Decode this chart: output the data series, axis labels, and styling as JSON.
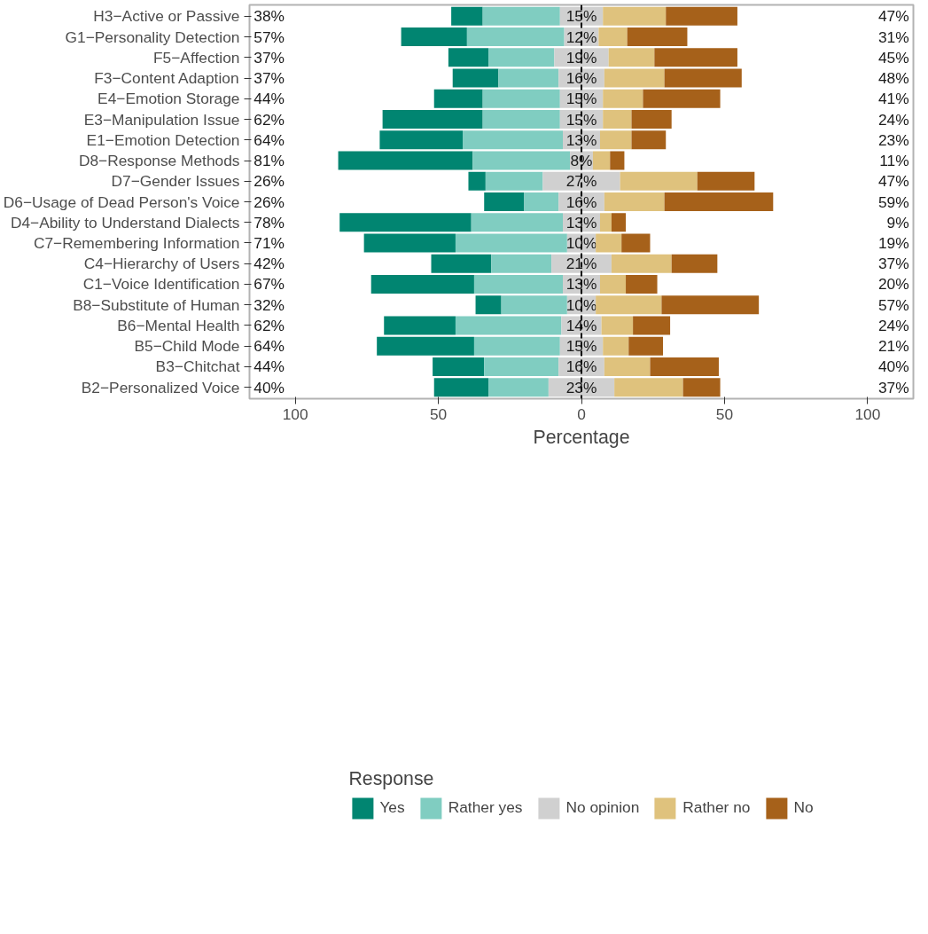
{
  "chart_data": {
    "type": "bar",
    "orientation": "horizontal",
    "xlabel": "Percentage",
    "legend_title": "Response",
    "legend": "bottom",
    "grid": false,
    "categories": [
      "H3−Active or Passive",
      "G1−Personality Detection",
      "F5−Affection",
      "F3−Content Adaption",
      "E4−Emotion Storage",
      "E3−Manipulation Issue",
      "E1−Emotion Detection",
      "D8−Response Methods",
      "D7−Gender Issues",
      "D6−Usage of Dead Person's Voice",
      "D4−Ability to Understand Dialects",
      "C7−Remembering Information",
      "C4−Hierarchy of Users",
      "C1−Voice Identification",
      "B8−Substitute of Human",
      "B6−Mental Health",
      "B5−Child Mode",
      "B3−Chitchat",
      "B2−Personalized Voice"
    ],
    "xlim": [
      -116,
      116
    ],
    "xticks": [
      {
        "value": -100,
        "label": "100"
      },
      {
        "value": -50,
        "label": "50"
      },
      0,
      50,
      100
    ],
    "series": [
      {
        "name": "Yes",
        "color": "#018571",
        "values": [
          11,
          23,
          14,
          16,
          17,
          35,
          29,
          47,
          6,
          14,
          46,
          32,
          21,
          36,
          9,
          25,
          34,
          18,
          19
        ],
        "base": [
          -45.5,
          -63,
          -46.5,
          -45,
          -51.5,
          -69.5,
          -70.5,
          -85,
          -39.5,
          -34,
          -84.5,
          -76,
          -52.5,
          -73.5,
          -37,
          -69,
          -71.5,
          -52,
          -51.5
        ]
      },
      {
        "name": "Rather yes",
        "color": "#80cdc1",
        "values": [
          27,
          34,
          23,
          21,
          27,
          27,
          35,
          34,
          20,
          12,
          32,
          39,
          21,
          31,
          23,
          37,
          30,
          26,
          21
        ],
        "base": [
          -34.5,
          -40,
          -32.5,
          -29,
          -34.5,
          -34.5,
          -41.5,
          -38,
          -33.5,
          -20,
          -38.5,
          -44,
          -31.5,
          -37.5,
          -28,
          -44,
          -37.5,
          -34,
          -32.5
        ]
      },
      {
        "name": "No opinion",
        "color": "#d0d0d0",
        "values": [
          15,
          12,
          19,
          16,
          15,
          15,
          13,
          8,
          27,
          16,
          13,
          10,
          21,
          13,
          10,
          14,
          15,
          16,
          23
        ],
        "base": [
          -7.5,
          -6,
          -9.5,
          -8,
          -7.5,
          -7.5,
          -6.5,
          -4,
          -13.5,
          -8,
          -6.5,
          -5,
          -10.5,
          -6.5,
          -5,
          -7,
          -7.5,
          -8,
          -11.5
        ],
        "value_labels": [
          "15%",
          "12%",
          "19%",
          "16%",
          "15%",
          "15%",
          "13%",
          "8%",
          "27%",
          "16%",
          "13%",
          "10%",
          "21%",
          "13%",
          "10%",
          "14%",
          "15%",
          "16%",
          "23%"
        ]
      },
      {
        "name": "Rather no",
        "color": "#dfc27d",
        "values": [
          22,
          10,
          16,
          21,
          14,
          10,
          11,
          6,
          27,
          21,
          4,
          9,
          21,
          9,
          23,
          11,
          9,
          16,
          24
        ],
        "base": [
          7.5,
          6,
          9.5,
          8,
          7.5,
          7.5,
          6.5,
          4,
          13.5,
          8,
          6.5,
          5,
          10.5,
          6.5,
          5,
          7,
          7.5,
          8,
          11.5
        ]
      },
      {
        "name": "No",
        "color": "#a6611a",
        "values": [
          25,
          21,
          29,
          27,
          27,
          14,
          12,
          5,
          20,
          38,
          5,
          10,
          16,
          11,
          34,
          13,
          12,
          24,
          13
        ],
        "base": [
          29.5,
          16,
          25.5,
          29,
          21.5,
          17.5,
          17.5,
          10,
          40.5,
          29,
          10.5,
          14,
          31.5,
          15.5,
          28,
          18,
          16.5,
          24,
          35.5
        ]
      }
    ],
    "ref_lines": [
      {
        "axis": "x",
        "value": 0,
        "line_style": "dashed",
        "color": "#000000"
      }
    ],
    "annotations": [
      "38%",
      "47%",
      "57%",
      "31%",
      "37%",
      "45%",
      "37%",
      "48%",
      "44%",
      "41%",
      "62%",
      "24%",
      "64%",
      "23%",
      "81%",
      "11%",
      "26%",
      "47%",
      "26%",
      "59%",
      "78%",
      "9%",
      "71%",
      "19%",
      "42%",
      "37%",
      "67%",
      "20%",
      "32%",
      "57%",
      "62%",
      "24%",
      "64%",
      "21%",
      "44%",
      "40%",
      "40%",
      "37%"
    ]
  }
}
